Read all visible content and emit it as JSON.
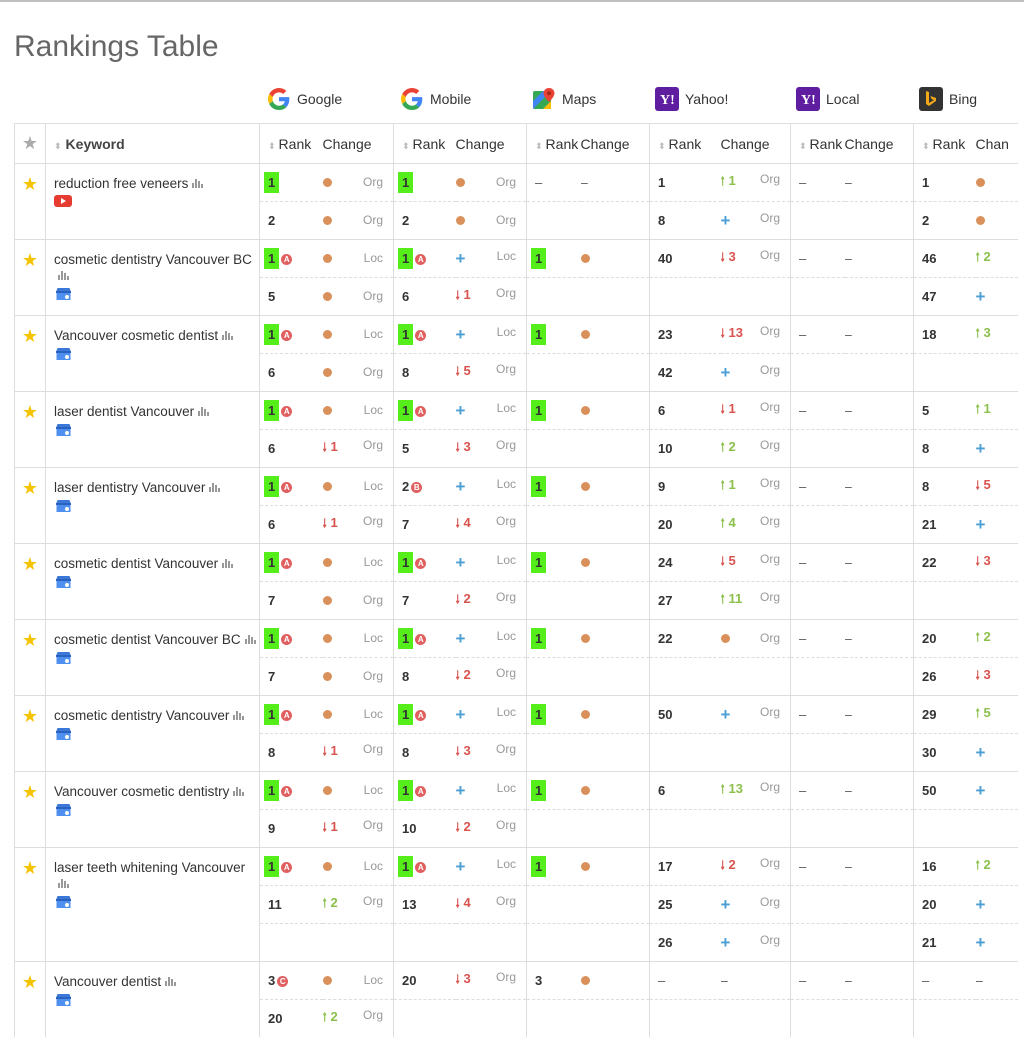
{
  "page": {
    "title": "Rankings Table"
  },
  "engines": [
    {
      "name": "Google",
      "icon": "google-icon"
    },
    {
      "name": "Mobile",
      "icon": "google-mobile-icon"
    },
    {
      "name": "Maps",
      "icon": "google-maps-icon"
    },
    {
      "name": "Yahoo!",
      "icon": "yahoo-icon"
    },
    {
      "name": "Local",
      "icon": "yahoo-local-icon"
    },
    {
      "name": "Bing",
      "icon": "bing-icon"
    }
  ],
  "header": {
    "keyword": "Keyword",
    "rank": "Rank",
    "change": "Change",
    "last_change_truncated": "Chan"
  },
  "colors": {
    "highlight": "#55ee1b",
    "up": "#8cc04c",
    "down": "#d9534f",
    "new": "#4a9fd4",
    "same": "#d9905a",
    "star": "#f5c400"
  },
  "keywords": [
    {
      "keyword": "reduction free veneers",
      "extra_icon": "youtube-icon",
      "rows": [
        [
          {
            "r": "1",
            "hl": true,
            "c": "dot",
            "t": "Org"
          },
          {
            "r": "1",
            "hl": true,
            "c": "dot",
            "t": "Org"
          },
          {
            "r": "–",
            "c": "dash"
          },
          {
            "r": "1",
            "c": "up",
            "v": "1",
            "t": "Org"
          },
          {
            "r": "–",
            "c": "dash"
          },
          {
            "r": "1",
            "c": "dot"
          }
        ],
        [
          {
            "r": "2",
            "c": "dot",
            "t": "Org"
          },
          {
            "r": "2",
            "c": "dot",
            "t": "Org"
          },
          {},
          {
            "r": "8",
            "c": "plus",
            "t": "Org"
          },
          {},
          {
            "r": "2",
            "c": "dot"
          }
        ]
      ]
    },
    {
      "keyword": "cosmetic dentistry Vancouver BC",
      "extra_icon": "business-listing-icon",
      "rows": [
        [
          {
            "r": "1",
            "hl": true,
            "b": "A",
            "c": "dot",
            "t": "Loc"
          },
          {
            "r": "1",
            "hl": true,
            "b": "A",
            "c": "plus",
            "t": "Loc"
          },
          {
            "r": "1",
            "hl": true,
            "c": "dot"
          },
          {
            "r": "40",
            "c": "down",
            "v": "3",
            "t": "Org"
          },
          {
            "r": "–",
            "c": "dash"
          },
          {
            "r": "46",
            "c": "up",
            "v": "2"
          }
        ],
        [
          {
            "r": "5",
            "c": "dot",
            "t": "Org"
          },
          {
            "r": "6",
            "c": "down",
            "v": "1",
            "t": "Org"
          },
          {},
          {},
          {},
          {
            "r": "47",
            "c": "plus"
          }
        ]
      ]
    },
    {
      "keyword": "Vancouver cosmetic dentist",
      "extra_icon": "business-listing-icon",
      "rows": [
        [
          {
            "r": "1",
            "hl": true,
            "b": "A",
            "c": "dot",
            "t": "Loc"
          },
          {
            "r": "1",
            "hl": true,
            "b": "A",
            "c": "plus",
            "t": "Loc"
          },
          {
            "r": "1",
            "hl": true,
            "c": "dot"
          },
          {
            "r": "23",
            "c": "down",
            "v": "13",
            "t": "Org"
          },
          {
            "r": "–",
            "c": "dash"
          },
          {
            "r": "18",
            "c": "up",
            "v": "3"
          }
        ],
        [
          {
            "r": "6",
            "c": "dot",
            "t": "Org"
          },
          {
            "r": "8",
            "c": "down",
            "v": "5",
            "t": "Org"
          },
          {},
          {
            "r": "42",
            "c": "plus",
            "t": "Org"
          },
          {},
          {}
        ]
      ]
    },
    {
      "keyword": "laser dentist Vancouver",
      "extra_icon": "business-listing-icon",
      "rows": [
        [
          {
            "r": "1",
            "hl": true,
            "b": "A",
            "c": "dot",
            "t": "Loc"
          },
          {
            "r": "1",
            "hl": true,
            "b": "A",
            "c": "plus",
            "t": "Loc"
          },
          {
            "r": "1",
            "hl": true,
            "c": "dot"
          },
          {
            "r": "6",
            "c": "down",
            "v": "1",
            "t": "Org"
          },
          {
            "r": "–",
            "c": "dash"
          },
          {
            "r": "5",
            "c": "up",
            "v": "1"
          }
        ],
        [
          {
            "r": "6",
            "c": "down",
            "v": "1",
            "t": "Org"
          },
          {
            "r": "5",
            "c": "down",
            "v": "3",
            "t": "Org"
          },
          {},
          {
            "r": "10",
            "c": "up",
            "v": "2",
            "t": "Org"
          },
          {},
          {
            "r": "8",
            "c": "plus"
          }
        ]
      ]
    },
    {
      "keyword": "laser dentistry Vancouver",
      "extra_icon": "business-listing-icon",
      "rows": [
        [
          {
            "r": "1",
            "hl": true,
            "b": "A",
            "c": "dot",
            "t": "Loc"
          },
          {
            "r": "2",
            "b": "B",
            "c": "plus",
            "t": "Loc"
          },
          {
            "r": "1",
            "hl": true,
            "c": "dot"
          },
          {
            "r": "9",
            "c": "up",
            "v": "1",
            "t": "Org"
          },
          {
            "r": "–",
            "c": "dash"
          },
          {
            "r": "8",
            "c": "down",
            "v": "5"
          }
        ],
        [
          {
            "r": "6",
            "c": "down",
            "v": "1",
            "t": "Org"
          },
          {
            "r": "7",
            "c": "down",
            "v": "4",
            "t": "Org"
          },
          {},
          {
            "r": "20",
            "c": "up",
            "v": "4",
            "t": "Org"
          },
          {},
          {
            "r": "21",
            "c": "plus"
          }
        ]
      ]
    },
    {
      "keyword": "cosmetic dentist Vancouver",
      "extra_icon": "business-listing-icon",
      "rows": [
        [
          {
            "r": "1",
            "hl": true,
            "b": "A",
            "c": "dot",
            "t": "Loc"
          },
          {
            "r": "1",
            "hl": true,
            "b": "A",
            "c": "plus",
            "t": "Loc"
          },
          {
            "r": "1",
            "hl": true,
            "c": "dot"
          },
          {
            "r": "24",
            "c": "down",
            "v": "5",
            "t": "Org"
          },
          {
            "r": "–",
            "c": "dash"
          },
          {
            "r": "22",
            "c": "down",
            "v": "3"
          }
        ],
        [
          {
            "r": "7",
            "c": "dot",
            "t": "Org"
          },
          {
            "r": "7",
            "c": "down",
            "v": "2",
            "t": "Org"
          },
          {},
          {
            "r": "27",
            "c": "up",
            "v": "11",
            "t": "Org"
          },
          {},
          {}
        ]
      ]
    },
    {
      "keyword": "cosmetic dentist Vancouver BC",
      "extra_icon": "business-listing-icon",
      "rows": [
        [
          {
            "r": "1",
            "hl": true,
            "b": "A",
            "c": "dot",
            "t": "Loc"
          },
          {
            "r": "1",
            "hl": true,
            "b": "A",
            "c": "plus",
            "t": "Loc"
          },
          {
            "r": "1",
            "hl": true,
            "c": "dot"
          },
          {
            "r": "22",
            "c": "dot",
            "t": "Org"
          },
          {
            "r": "–",
            "c": "dash"
          },
          {
            "r": "20",
            "c": "up",
            "v": "2"
          }
        ],
        [
          {
            "r": "7",
            "c": "dot",
            "t": "Org"
          },
          {
            "r": "8",
            "c": "down",
            "v": "2",
            "t": "Org"
          },
          {},
          {},
          {},
          {
            "r": "26",
            "c": "down",
            "v": "3"
          }
        ]
      ]
    },
    {
      "keyword": "cosmetic dentistry Vancouver",
      "extra_icon": "business-listing-icon",
      "rows": [
        [
          {
            "r": "1",
            "hl": true,
            "b": "A",
            "c": "dot",
            "t": "Loc"
          },
          {
            "r": "1",
            "hl": true,
            "b": "A",
            "c": "plus",
            "t": "Loc"
          },
          {
            "r": "1",
            "hl": true,
            "c": "dot"
          },
          {
            "r": "50",
            "c": "plus",
            "t": "Org"
          },
          {
            "r": "–",
            "c": "dash"
          },
          {
            "r": "29",
            "c": "up",
            "v": "5"
          }
        ],
        [
          {
            "r": "8",
            "c": "down",
            "v": "1",
            "t": "Org"
          },
          {
            "r": "8",
            "c": "down",
            "v": "3",
            "t": "Org"
          },
          {},
          {},
          {},
          {
            "r": "30",
            "c": "plus"
          }
        ]
      ]
    },
    {
      "keyword": "Vancouver cosmetic dentistry",
      "extra_icon": "business-listing-icon",
      "rows": [
        [
          {
            "r": "1",
            "hl": true,
            "b": "A",
            "c": "dot",
            "t": "Loc"
          },
          {
            "r": "1",
            "hl": true,
            "b": "A",
            "c": "plus",
            "t": "Loc"
          },
          {
            "r": "1",
            "hl": true,
            "c": "dot"
          },
          {
            "r": "6",
            "c": "up",
            "v": "13",
            "t": "Org"
          },
          {
            "r": "–",
            "c": "dash"
          },
          {
            "r": "50",
            "c": "plus"
          }
        ],
        [
          {
            "r": "9",
            "c": "down",
            "v": "1",
            "t": "Org"
          },
          {
            "r": "10",
            "c": "down",
            "v": "2",
            "t": "Org"
          },
          {},
          {},
          {},
          {}
        ]
      ]
    },
    {
      "keyword": "laser teeth whitening Vancouver",
      "extra_icon": "business-listing-icon",
      "rows": [
        [
          {
            "r": "1",
            "hl": true,
            "b": "A",
            "c": "dot",
            "t": "Loc"
          },
          {
            "r": "1",
            "hl": true,
            "b": "A",
            "c": "plus",
            "t": "Loc"
          },
          {
            "r": "1",
            "hl": true,
            "c": "dot"
          },
          {
            "r": "17",
            "c": "down",
            "v": "2",
            "t": "Org"
          },
          {
            "r": "–",
            "c": "dash"
          },
          {
            "r": "16",
            "c": "up",
            "v": "2"
          }
        ],
        [
          {
            "r": "11",
            "c": "up",
            "v": "2",
            "t": "Org"
          },
          {
            "r": "13",
            "c": "down",
            "v": "4",
            "t": "Org"
          },
          {},
          {
            "r": "25",
            "c": "plus",
            "t": "Org"
          },
          {},
          {
            "r": "20",
            "c": "plus"
          }
        ],
        [
          {},
          {},
          {},
          {
            "r": "26",
            "c": "plus",
            "t": "Org"
          },
          {},
          {
            "r": "21",
            "c": "plus"
          }
        ]
      ]
    },
    {
      "keyword": "Vancouver dentist",
      "extra_icon": "business-listing-icon",
      "rows": [
        [
          {
            "r": "3",
            "b": "C",
            "c": "dot",
            "t": "Loc"
          },
          {
            "r": "20",
            "c": "down",
            "v": "3",
            "t": "Org"
          },
          {
            "r": "3",
            "c": "dot"
          },
          {
            "r": "–",
            "c": "dash"
          },
          {
            "r": "–",
            "c": "dash"
          },
          {
            "r": "–",
            "c": "dash"
          }
        ],
        [
          {
            "r": "20",
            "c": "up",
            "v": "2",
            "t": "Org"
          },
          {},
          {},
          {},
          {},
          {}
        ]
      ]
    }
  ]
}
